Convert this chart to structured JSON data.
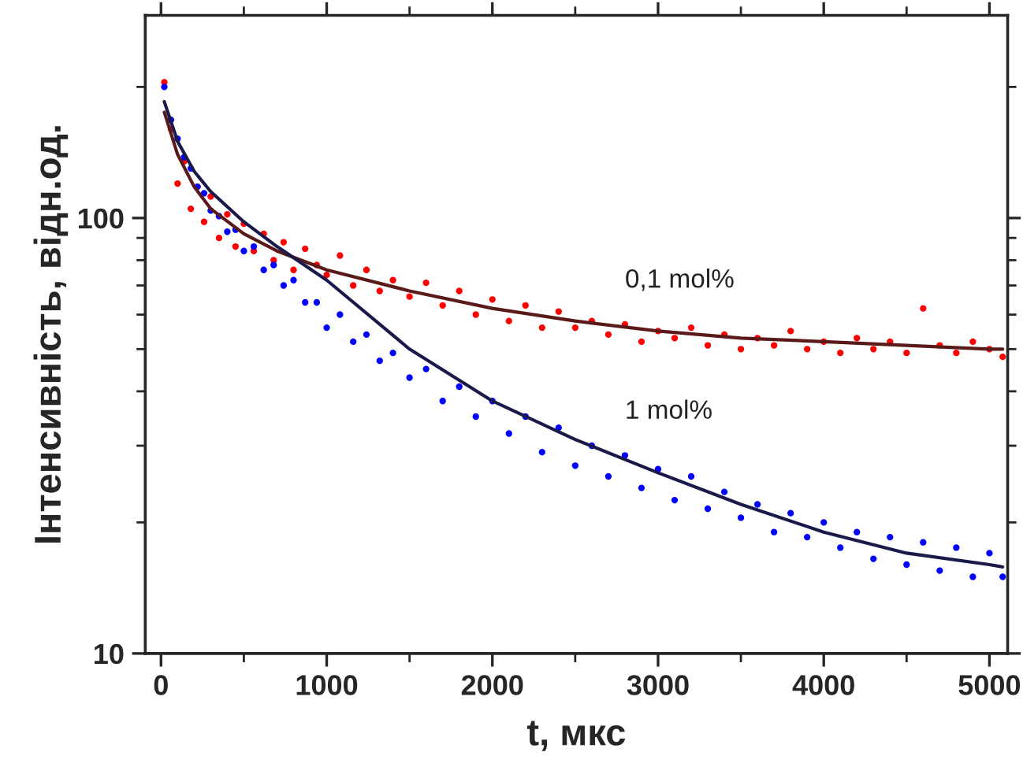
{
  "chart_data": {
    "type": "scatter",
    "xlabel": "t, мкс",
    "ylabel": "Інтенсивність, відн.од.",
    "log": "y",
    "xlim": [
      -95,
      5110
    ],
    "ylim": [
      10,
      292
    ],
    "xticks": [
      0,
      1000,
      2000,
      3000,
      4000,
      5000
    ],
    "yticks": [
      10,
      100
    ],
    "grid": false,
    "legend": false,
    "marker": "circle",
    "x": [
      20,
      60,
      100,
      140,
      180,
      220,
      260,
      300,
      350,
      400,
      450,
      500,
      560,
      620,
      680,
      740,
      800,
      870,
      940,
      1000,
      1080,
      1160,
      1240,
      1320,
      1400,
      1500,
      1600,
      1700,
      1800,
      1900,
      2000,
      2100,
      2200,
      2300,
      2400,
      2500,
      2600,
      2700,
      2800,
      2900,
      3000,
      3100,
      3200,
      3300,
      3400,
      3500,
      3600,
      3700,
      3800,
      3900,
      4000,
      4100,
      4200,
      4300,
      4400,
      4500,
      4600,
      4700,
      4800,
      4900,
      5000,
      5080
    ],
    "series": [
      {
        "name": "0,1 mol%",
        "color": "#ff0000",
        "values": [
          205,
          160,
          120,
          135,
          105,
          118,
          98,
          112,
          90,
          102,
          86,
          97,
          84,
          92,
          80,
          88,
          76,
          85,
          78,
          74,
          82,
          70,
          76,
          68,
          72,
          66,
          71,
          63,
          68,
          60,
          65,
          58,
          63,
          56,
          61,
          56,
          58,
          54,
          57,
          52,
          55,
          53,
          56,
          51,
          54,
          50,
          53,
          51,
          55,
          50,
          52,
          49,
          53,
          50,
          52,
          49,
          62,
          51,
          49,
          52,
          50,
          48
        ]
      },
      {
        "name": "1 mol%",
        "color": "#0000ff",
        "values": [
          200,
          168,
          152,
          138,
          130,
          118,
          114,
          104,
          101,
          93,
          94,
          84,
          86,
          76,
          78,
          70,
          72,
          64,
          64,
          56,
          60,
          52,
          54,
          47,
          49,
          43,
          45,
          38,
          41,
          35,
          38,
          32,
          35,
          29,
          33,
          27,
          30,
          25.5,
          28.5,
          24,
          26.5,
          22.5,
          25.5,
          21.5,
          23.5,
          20.5,
          22,
          19,
          21,
          18.5,
          20,
          17.5,
          19,
          16.5,
          18.5,
          16,
          18,
          15.5,
          17.5,
          15,
          17,
          15
        ]
      },
      {
        "type": "line",
        "color": "#5a1a1a",
        "marker": "none",
        "x": [
          20,
          100,
          200,
          300,
          500,
          700,
          1000,
          1500,
          2000,
          2500,
          3000,
          3500,
          4000,
          4500,
          5000,
          5080
        ],
        "values": [
          175,
          140,
          118,
          105,
          92,
          84,
          76,
          68,
          62,
          58,
          55,
          53,
          52,
          51,
          50,
          50
        ]
      },
      {
        "type": "line",
        "color": "#1a1a4a",
        "marker": "none",
        "x": [
          20,
          100,
          200,
          300,
          500,
          700,
          1000,
          1500,
          2000,
          2500,
          3000,
          3500,
          4000,
          4500,
          5000,
          5080
        ],
        "values": [
          185,
          150,
          128,
          115,
          98,
          86,
          72,
          50,
          38,
          31,
          26,
          22,
          19,
          17,
          16,
          15.8
        ]
      }
    ]
  }
}
